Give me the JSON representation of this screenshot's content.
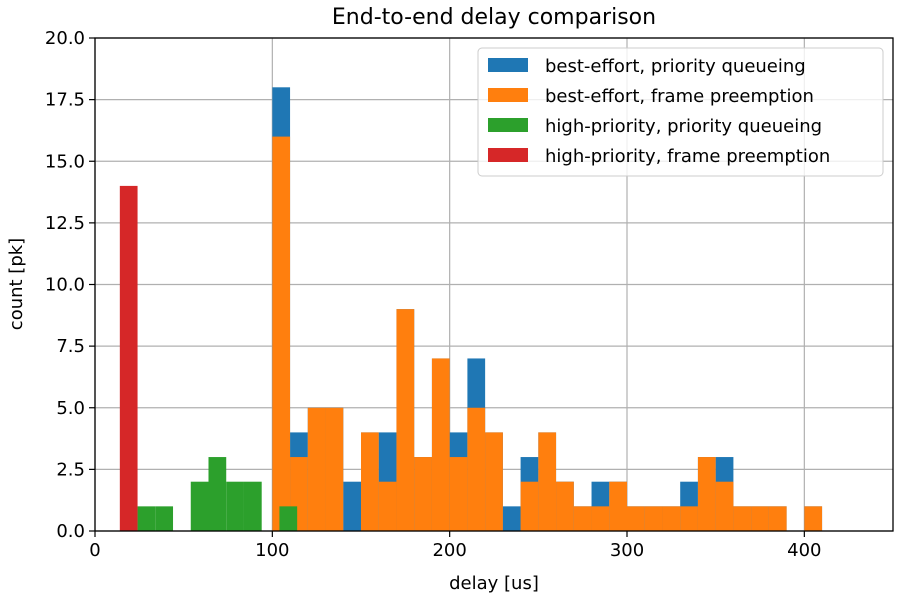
{
  "chart_data": {
    "type": "bar",
    "title": "End-to-end delay comparison",
    "xlabel": "delay [us]",
    "ylabel": "count [pk]",
    "xlim": [
      0,
      450
    ],
    "ylim": [
      0,
      20
    ],
    "bin_width": 10,
    "xticks": [
      0,
      100,
      200,
      300,
      400
    ],
    "xtick_labels": [
      "0",
      "100",
      "200",
      "300",
      "400"
    ],
    "yticks": [
      0,
      2.5,
      5,
      7.5,
      10,
      12.5,
      15,
      17.5,
      20
    ],
    "ytick_labels": [
      "0.0",
      "2.5",
      "5.0",
      "7.5",
      "10.0",
      "12.5",
      "15.0",
      "17.5",
      "20.0"
    ],
    "grid": true,
    "legend_position": "top-right",
    "colors": {
      "best_effort_pq": "#1f77b4",
      "best_effort_fp": "#ff7f0e",
      "high_priority_pq": "#2ca02c",
      "high_priority_fp": "#d62728"
    },
    "series": [
      {
        "name": "best-effort, priority queueing",
        "color": "#1f77b4",
        "bins": [
          [
            100,
            18
          ],
          [
            110,
            4
          ],
          [
            120,
            5
          ],
          [
            130,
            5
          ],
          [
            140,
            2
          ],
          [
            150,
            4
          ],
          [
            160,
            4
          ],
          [
            170,
            9
          ],
          [
            180,
            3
          ],
          [
            190,
            7
          ],
          [
            200,
            4
          ],
          [
            210,
            7
          ],
          [
            220,
            4
          ],
          [
            230,
            1
          ],
          [
            240,
            3
          ],
          [
            250,
            4
          ],
          [
            260,
            2
          ],
          [
            270,
            1
          ],
          [
            280,
            2
          ],
          [
            290,
            2
          ],
          [
            300,
            1
          ],
          [
            310,
            1
          ],
          [
            320,
            1
          ],
          [
            330,
            2
          ],
          [
            340,
            3
          ],
          [
            350,
            3
          ],
          [
            360,
            1
          ],
          [
            370,
            1
          ],
          [
            380,
            1
          ],
          [
            400,
            1
          ]
        ]
      },
      {
        "name": "best-effort, frame preemption",
        "color": "#ff7f0e",
        "bins": [
          [
            100,
            16
          ],
          [
            110,
            3
          ],
          [
            120,
            5
          ],
          [
            130,
            5
          ],
          [
            150,
            4
          ],
          [
            160,
            2
          ],
          [
            170,
            9
          ],
          [
            180,
            3
          ],
          [
            190,
            7
          ],
          [
            200,
            3
          ],
          [
            210,
            5
          ],
          [
            220,
            4
          ],
          [
            240,
            2
          ],
          [
            250,
            4
          ],
          [
            260,
            2
          ],
          [
            270,
            1
          ],
          [
            280,
            1
          ],
          [
            290,
            2
          ],
          [
            300,
            1
          ],
          [
            310,
            1
          ],
          [
            320,
            1
          ],
          [
            330,
            1
          ],
          [
            340,
            3
          ],
          [
            350,
            2
          ],
          [
            360,
            1
          ],
          [
            370,
            1
          ],
          [
            380,
            1
          ],
          [
            400,
            1
          ]
        ]
      },
      {
        "name": "high-priority, priority queueing",
        "color": "#2ca02c",
        "bins": [
          [
            24,
            1
          ],
          [
            34,
            1
          ],
          [
            54,
            2
          ],
          [
            64,
            3
          ],
          [
            74,
            2
          ],
          [
            84,
            2
          ],
          [
            104,
            1
          ]
        ]
      },
      {
        "name": "high-priority, frame preemption",
        "color": "#d62728",
        "bins": [
          [
            14,
            14
          ]
        ]
      }
    ]
  }
}
